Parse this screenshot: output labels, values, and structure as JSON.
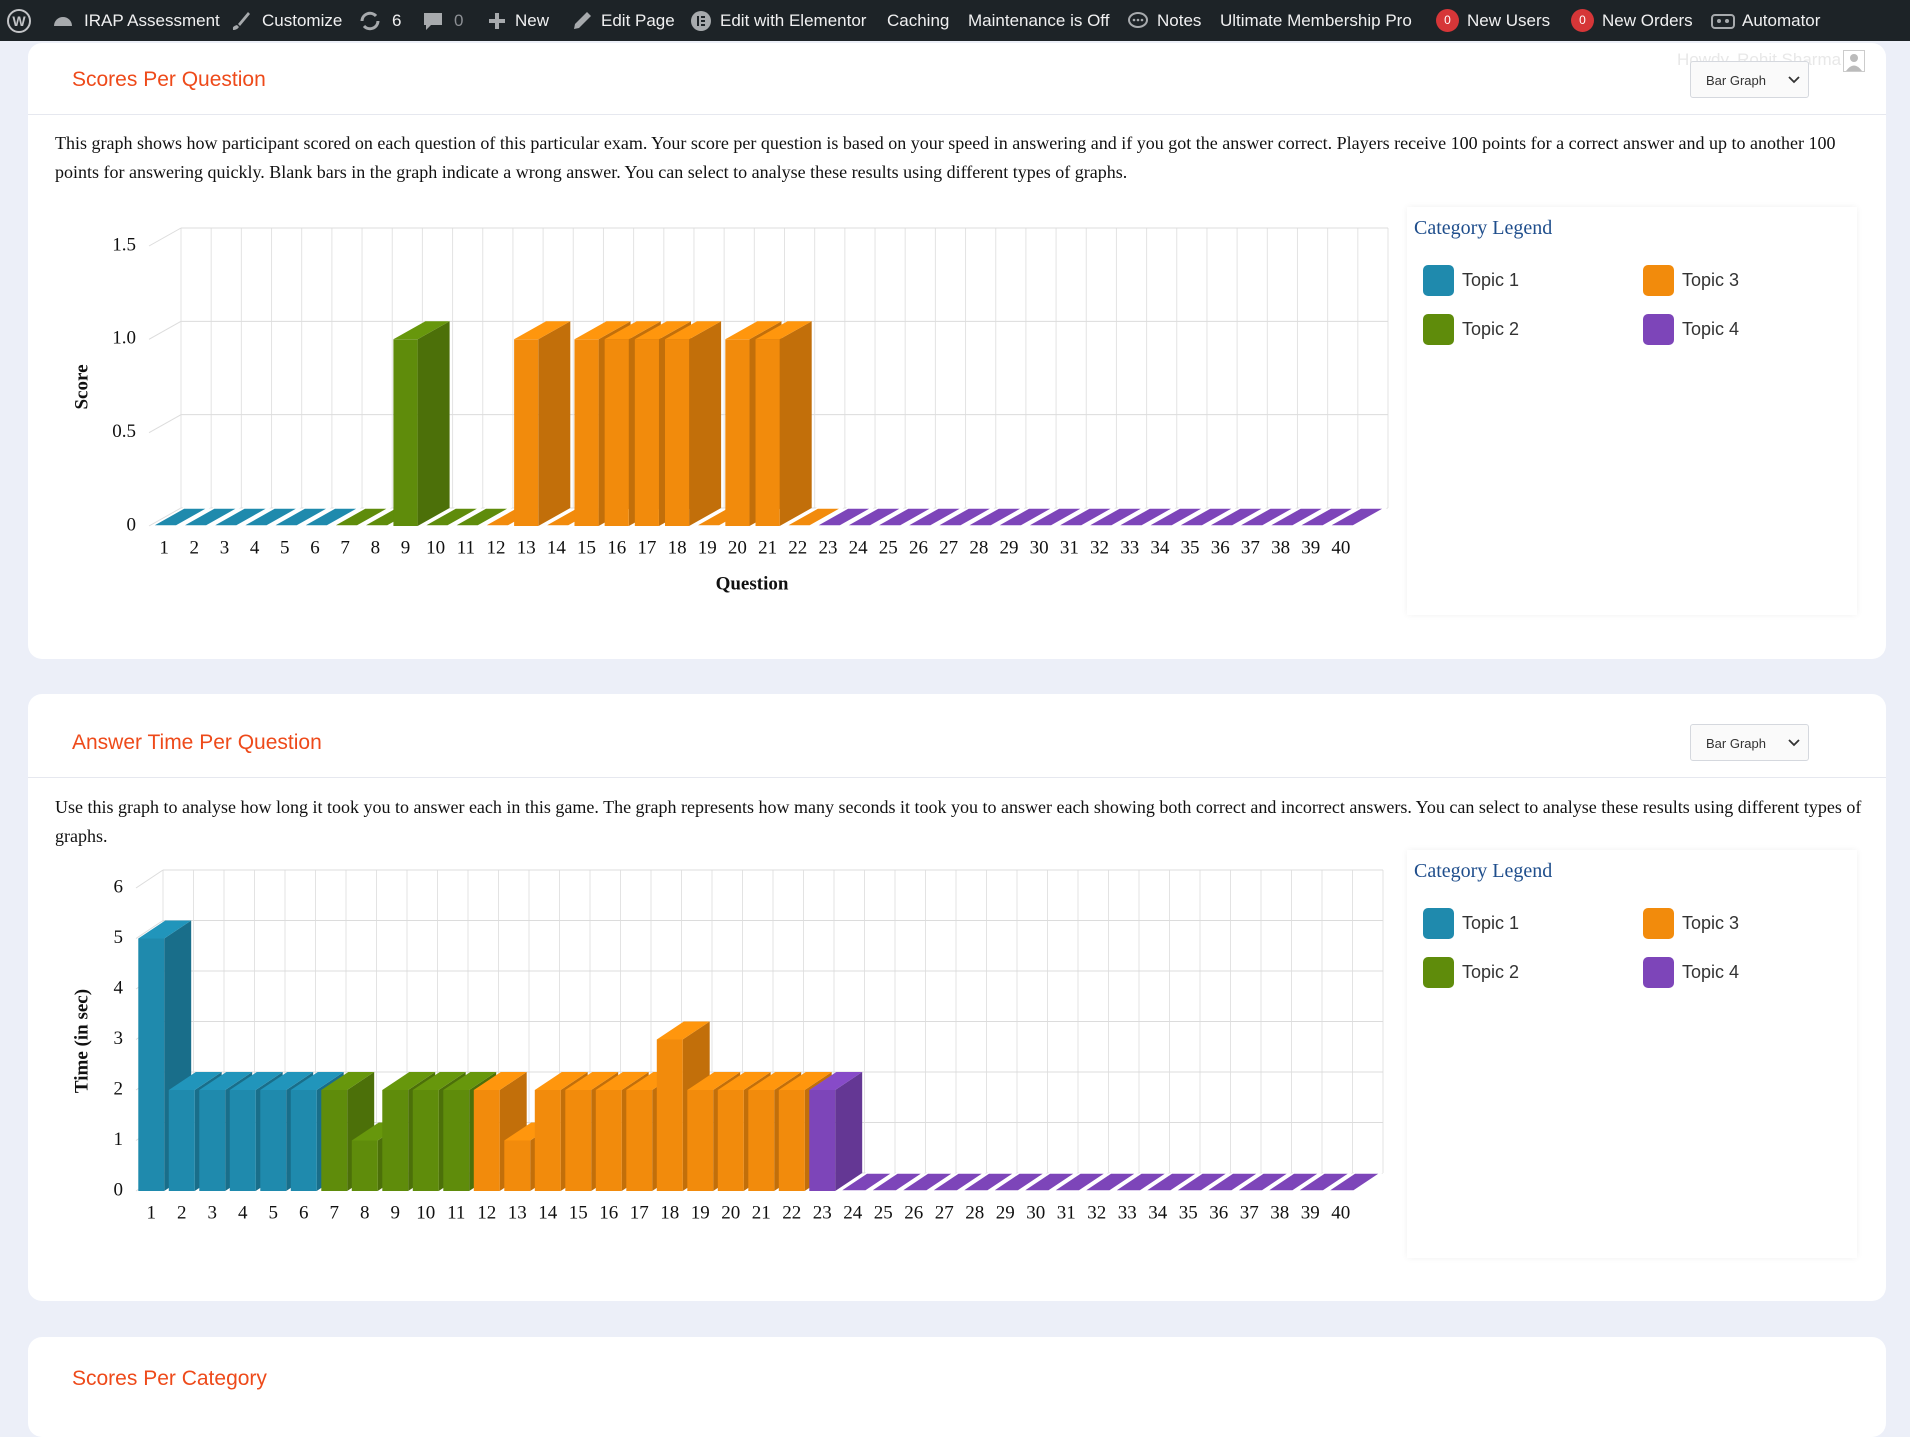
{
  "admin_bar": {
    "site": "IRAP Assessment",
    "customize": "Customize",
    "updates": "6",
    "comments": "0",
    "new": "New",
    "edit_page": "Edit Page",
    "elementor": "Edit with Elementor",
    "caching": "Caching",
    "maintenance": "Maintenance is Off",
    "notes": "Notes",
    "membership": "Ultimate Membership Pro",
    "new_users_count": "0",
    "new_users": "New Users",
    "new_orders_count": "0",
    "new_orders": "New Orders",
    "automator": "Automator",
    "howdy": "Howdy, Rohit Sharma"
  },
  "panels": [
    {
      "title": "Scores Per Question",
      "select": "Bar Graph",
      "description": "This graph shows how participant scored on each question of this particular exam. Your score per question is based on your speed in answering and if you got the answer correct. Players receive 100 points for a correct answer and up to another 100 points for answering quickly. Blank bars in the graph indicate a wrong answer. You can select to analyse these results using different types of graphs."
    },
    {
      "title": "Answer Time Per Question",
      "select": "Bar Graph",
      "description": "Use this graph to analyse how long it took you to answer each in this game. The graph represents how many seconds it took you to answer each showing both correct and incorrect answers. You can select to analyse these results using different types of graphs."
    },
    {
      "title": "Scores Per Category"
    }
  ],
  "chart_data": [
    {
      "type": "bar",
      "x_label": "Question",
      "y_label": "Score",
      "legend_title": "Category Legend",
      "grid": true,
      "categories": [
        "1",
        "2",
        "3",
        "4",
        "5",
        "6",
        "7",
        "8",
        "9",
        "10",
        "11",
        "12",
        "13",
        "14",
        "15",
        "16",
        "17",
        "18",
        "19",
        "20",
        "21",
        "22",
        "23",
        "24",
        "25",
        "26",
        "27",
        "28",
        "29",
        "30",
        "31",
        "32",
        "33",
        "34",
        "35",
        "36",
        "37",
        "38",
        "39",
        "40"
      ],
      "ylim": [
        0,
        1.5
      ],
      "yticks": [
        0,
        0.5,
        {
          "value": 1,
          "label": "1.0"
        },
        1.5
      ],
      "series": [
        {
          "name": "Topic 1",
          "color": "#1f8aad",
          "values": [
            0,
            0,
            0,
            0,
            0,
            0,
            null,
            null,
            null,
            null,
            null,
            null,
            null,
            null,
            null,
            null,
            null,
            null,
            null,
            null,
            null,
            null,
            null,
            null,
            null,
            null,
            null,
            null,
            null,
            null,
            null,
            null,
            null,
            null,
            null,
            null,
            null,
            null,
            null,
            null
          ]
        },
        {
          "name": "Topic 2",
          "color": "#5f8c0b",
          "values": [
            null,
            null,
            null,
            null,
            null,
            null,
            0,
            0,
            1,
            0,
            0,
            null,
            null,
            null,
            null,
            null,
            null,
            null,
            null,
            null,
            null,
            null,
            null,
            null,
            null,
            null,
            null,
            null,
            null,
            null,
            null,
            null,
            null,
            null,
            null,
            null,
            null,
            null,
            null,
            null
          ]
        },
        {
          "name": "Topic 3",
          "color": "#f28b0c",
          "values": [
            null,
            null,
            null,
            null,
            null,
            null,
            null,
            null,
            null,
            null,
            null,
            0,
            1,
            0,
            1,
            1,
            1,
            1,
            0,
            1,
            1,
            0,
            null,
            null,
            null,
            null,
            null,
            null,
            null,
            null,
            null,
            null,
            null,
            null,
            null,
            null,
            null,
            null,
            null,
            null
          ]
        },
        {
          "name": "Topic 4",
          "color": "#7d45b9",
          "values": [
            null,
            null,
            null,
            null,
            null,
            null,
            null,
            null,
            null,
            null,
            null,
            null,
            null,
            null,
            null,
            null,
            null,
            null,
            null,
            null,
            null,
            null,
            0,
            0,
            0,
            0,
            0,
            0,
            0,
            0,
            0,
            0,
            0,
            0,
            0,
            0,
            0,
            0,
            0,
            0
          ]
        }
      ]
    },
    {
      "type": "bar",
      "y_label": "Time (in sec)",
      "legend_title": "Category Legend",
      "grid": true,
      "categories": [
        "1",
        "2",
        "3",
        "4",
        "5",
        "6",
        "7",
        "8",
        "9",
        "10",
        "11",
        "12",
        "13",
        "14",
        "15",
        "16",
        "17",
        "18",
        "19",
        "20",
        "21",
        "22",
        "23",
        "24",
        "25",
        "26",
        "27",
        "28",
        "29",
        "30",
        "31",
        "32",
        "33",
        "34",
        "35",
        "36",
        "37",
        "38",
        "39",
        "40"
      ],
      "ylim": [
        0,
        6
      ],
      "yticks": [
        0,
        1,
        2,
        3,
        4,
        5,
        6
      ],
      "series": [
        {
          "name": "Topic 1",
          "color": "#1f8aad",
          "values": [
            5,
            2,
            2,
            2,
            2,
            2,
            null,
            null,
            null,
            null,
            null,
            null,
            null,
            null,
            null,
            null,
            null,
            null,
            null,
            null,
            null,
            null,
            null,
            null,
            null,
            null,
            null,
            null,
            null,
            null,
            null,
            null,
            null,
            null,
            null,
            null,
            null,
            null,
            null,
            null
          ]
        },
        {
          "name": "Topic 2",
          "color": "#5f8c0b",
          "values": [
            null,
            null,
            null,
            null,
            null,
            null,
            2,
            1,
            2,
            2,
            2,
            null,
            null,
            null,
            null,
            null,
            null,
            null,
            null,
            null,
            null,
            null,
            null,
            null,
            null,
            null,
            null,
            null,
            null,
            null,
            null,
            null,
            null,
            null,
            null,
            null,
            null,
            null,
            null,
            null
          ]
        },
        {
          "name": "Topic 3",
          "color": "#f28b0c",
          "values": [
            null,
            null,
            null,
            null,
            null,
            null,
            null,
            null,
            null,
            null,
            null,
            2,
            1,
            2,
            2,
            2,
            2,
            3,
            2,
            2,
            2,
            2,
            null,
            null,
            null,
            null,
            null,
            null,
            null,
            null,
            null,
            null,
            null,
            null,
            null,
            null,
            null,
            null,
            null,
            null
          ]
        },
        {
          "name": "Topic 4",
          "color": "#7d45b9",
          "values": [
            null,
            null,
            null,
            null,
            null,
            null,
            null,
            null,
            null,
            null,
            null,
            null,
            null,
            null,
            null,
            null,
            null,
            null,
            null,
            null,
            null,
            null,
            2,
            0,
            0,
            0,
            0,
            0,
            0,
            0,
            0,
            0,
            0,
            0,
            0,
            0,
            0,
            0,
            0,
            0
          ]
        }
      ]
    }
  ]
}
